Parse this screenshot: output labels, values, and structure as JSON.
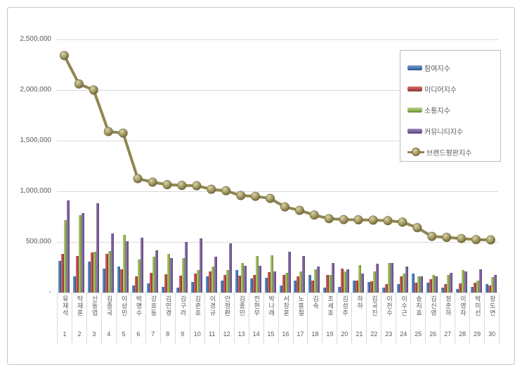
{
  "page_title": "",
  "y_axis": {
    "ticks": [
      "2,500,000",
      "2,000,000",
      "1,500,000",
      "1,000,000",
      "500,000",
      "-"
    ]
  },
  "chart_data": {
    "type": "bar+line",
    "title": "",
    "xlabel": "",
    "ylabel": "",
    "ylim": [
      0,
      2500000
    ],
    "grid": true,
    "legend_position": "top-right",
    "categories": [
      "유재석",
      "탁재훈",
      "신동엽",
      "김종국",
      "이상민",
      "박명수",
      "강호동",
      "김민경",
      "김구라",
      "김준호",
      "이경규",
      "안정환",
      "김종민",
      "전현무",
      "박나래",
      "서장훈",
      "노홍철",
      "김숙",
      "조세호",
      "김성주",
      "하하",
      "김국진",
      "이천수",
      "이수근",
      "송지효",
      "김신영",
      "정준하",
      "이영자",
      "박미선",
      "장도연"
    ],
    "ranks": [
      "1",
      "2",
      "3",
      "4",
      "5",
      "6",
      "7",
      "8",
      "9",
      "10",
      "11",
      "12",
      "13",
      "14",
      "15",
      "16",
      "17",
      "18",
      "19",
      "20",
      "21",
      "22",
      "23",
      "24",
      "25",
      "26",
      "27",
      "28",
      "29",
      "30"
    ],
    "series": [
      {
        "name": "참여지수",
        "key": "participation",
        "type": "bar",
        "color": "#4f81bd",
        "color_light": "#7399c6",
        "color_dark": "#2e5380",
        "values": [
          312000,
          157000,
          308000,
          236000,
          259000,
          69000,
          93000,
          58000,
          46000,
          104000,
          162000,
          116000,
          220000,
          139000,
          146000,
          69000,
          116000,
          174000,
          51000,
          58000,
          116000,
          104000,
          46000,
          86000,
          185000,
          97000,
          51000,
          35000,
          58000,
          86000
        ]
      },
      {
        "name": "미디어지수",
        "key": "media",
        "type": "bar",
        "color": "#c0504d",
        "color_light": "#d3716f",
        "color_dark": "#7f3533",
        "values": [
          382000,
          359000,
          398000,
          382000,
          227000,
          162000,
          197000,
          181000,
          167000,
          190000,
          208000,
          174000,
          167000,
          174000,
          204000,
          174000,
          162000,
          120000,
          174000,
          236000,
          116000,
          109000,
          81000,
          162000,
          97000,
          134000,
          81000,
          93000,
          97000,
          69000
        ]
      },
      {
        "name": "소통지수",
        "key": "communication",
        "type": "bar",
        "color": "#9bbb59",
        "color_light": "#b5cb83",
        "color_dark": "#6a8239",
        "values": [
          713000,
          764000,
          405000,
          410000,
          567000,
          329000,
          354000,
          385000,
          343000,
          220000,
          255000,
          220000,
          294000,
          359000,
          366000,
          197000,
          208000,
          227000,
          174000,
          208000,
          271000,
          208000,
          294000,
          185000,
          157000,
          174000,
          174000,
          220000,
          116000,
          150000
        ]
      },
      {
        "name": "커뮤니티지수",
        "key": "community",
        "type": "bar",
        "color": "#8064a2",
        "color_light": "#9d88b5",
        "color_dark": "#55436e",
        "values": [
          907000,
          787000,
          880000,
          583000,
          509000,
          544000,
          420000,
          343000,
          498000,
          532000,
          352000,
          486000,
          262000,
          262000,
          208000,
          400000,
          359000,
          255000,
          289000,
          227000,
          190000,
          285000,
          294000,
          255000,
          157000,
          157000,
          192000,
          208000,
          227000,
          174000
        ]
      },
      {
        "name": "브랜드평판지수",
        "key": "brand-reputation",
        "type": "line",
        "color": "#8f8752",
        "marker_light": "#d9d3ab",
        "marker_mid": "#a39a63",
        "marker_dark": "#6b6335",
        "values": [
          2340000,
          2060000,
          2000000,
          1590000,
          1575000,
          1125000,
          1090000,
          1065000,
          1058000,
          1055000,
          1020000,
          1005000,
          958000,
          950000,
          930000,
          845000,
          812000,
          765000,
          730000,
          720000,
          718000,
          715000,
          710000,
          695000,
          640000,
          555000,
          545000,
          533000,
          522000,
          520000
        ]
      }
    ]
  },
  "colors": {
    "frame_border": "#c6c6c6",
    "gridline": "#d9d9d9",
    "axis_text": "#595959",
    "background": "#ffffff"
  }
}
